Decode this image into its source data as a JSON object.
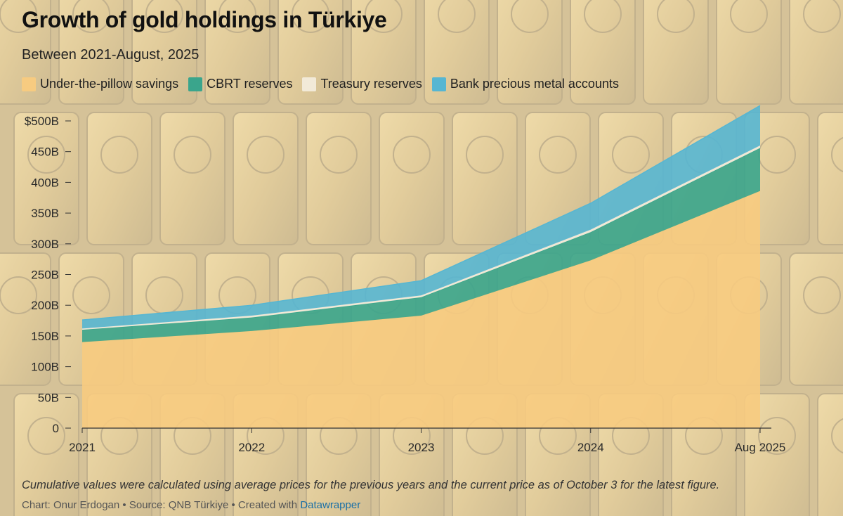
{
  "header": {
    "title": "Growth of gold holdings in Türkiye",
    "subtitle": "Between 2021-August, 2025"
  },
  "legend": [
    {
      "label": "Under-the-pillow savings",
      "color": "#f7cb80"
    },
    {
      "label": "CBRT reserves",
      "color": "#3aa58c"
    },
    {
      "label": "Treasury reserves",
      "color": "#f2ead8"
    },
    {
      "label": "Bank precious metal accounts",
      "color": "#56b6d2"
    }
  ],
  "chart_data": {
    "type": "area",
    "stacked": true,
    "title": "Growth of gold holdings in Türkiye",
    "subtitle": "Between 2021-August, 2025",
    "x_labels": [
      "2021",
      "2022",
      "2023",
      "2024",
      "Aug 2025"
    ],
    "ylim": [
      0,
      500
    ],
    "y_ticks": [
      0,
      50,
      100,
      150,
      200,
      250,
      300,
      350,
      400,
      450,
      500
    ],
    "y_tick_labels": [
      "0",
      "50B",
      "100B",
      "150B",
      "200B",
      "250B",
      "300B",
      "350B",
      "400B",
      "450B",
      "$500B"
    ],
    "series": [
      {
        "name": "Under-the-pillow savings",
        "color": "#f7cb80",
        "values": [
          140,
          158,
          183,
          273,
          386
        ]
      },
      {
        "name": "CBRT reserves",
        "color": "#3aa58c",
        "values": [
          20,
          22,
          30,
          46,
          70
        ]
      },
      {
        "name": "Treasury reserves",
        "color": "#f2ead8",
        "values": [
          2,
          3,
          3,
          4,
          4
        ]
      },
      {
        "name": "Bank precious metal accounts",
        "color": "#56b6d2",
        "values": [
          14,
          17,
          24,
          43,
          65
        ]
      }
    ]
  },
  "notes": "Cumulative values were calculated using average prices for the previous years and the current price as of October 3 for the latest figure.",
  "footer": {
    "chart_by": "Chart: Onur Erdogan",
    "separator": "•",
    "source": "Source: QNB Türkiye",
    "created_with": "Created with",
    "tool": "Datawrapper"
  }
}
